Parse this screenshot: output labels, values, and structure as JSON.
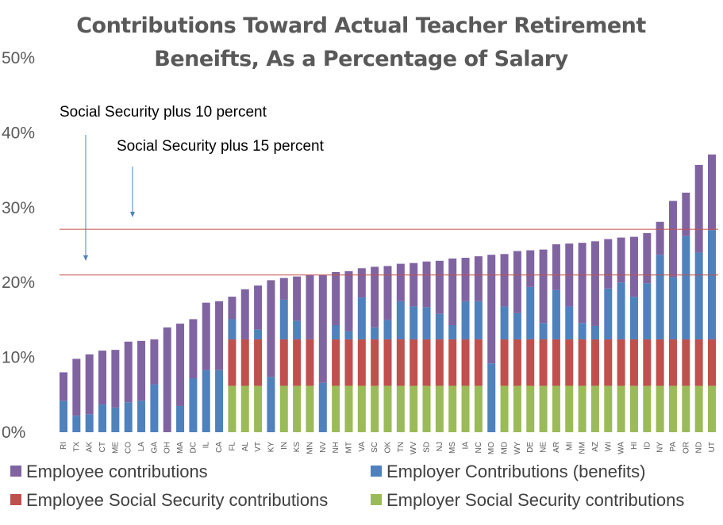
{
  "chart_data": {
    "type": "stacked-bar",
    "title": "Contributions Toward Actual Teacher Retirement Beneifts, As a Percentage of Salary",
    "categories": [
      "RI",
      "TX",
      "AK",
      "CT",
      "ME",
      "CO",
      "LA",
      "GA",
      "OH",
      "MA",
      "DC",
      "IL",
      "CA",
      "FL",
      "AL",
      "VT",
      "KY",
      "IN",
      "KS",
      "MN",
      "NV",
      "NH",
      "MT",
      "VA",
      "SC",
      "OK",
      "TN",
      "WV",
      "SD",
      "NJ",
      "MS",
      "IA",
      "NC",
      "MO",
      "MD",
      "WY",
      "DE",
      "NE",
      "AR",
      "MI",
      "NM",
      "AZ",
      "WI",
      "WA",
      "HI",
      "ID",
      "NY",
      "PA",
      "OR",
      "ND",
      "UT"
    ],
    "series": [
      {
        "name": "Employee contributions",
        "color": "#8064a2",
        "values": [
          3.8,
          7.6,
          8.0,
          7.2,
          7.7,
          8.1,
          8.0,
          6.0,
          14.0,
          11.0,
          7.9,
          9.0,
          9.2,
          3.0,
          6.7,
          5.9,
          12.9,
          2.9,
          5.9,
          8.6,
          14.4,
          7.1,
          8.0,
          3.9,
          8.1,
          7.2,
          5.0,
          5.8,
          6.1,
          7.1,
          8.9,
          5.8,
          6.0,
          14.5,
          7.0,
          8.3,
          4.9,
          9.8,
          6.1,
          8.4,
          10.7,
          11.3,
          6.6,
          6.0,
          8.0,
          6.7,
          4.4,
          10.2,
          5.8,
          11.7,
          10.1
        ]
      },
      {
        "name": "Employer Contributions (benefits)",
        "color": "#4f81bd",
        "values": [
          4.2,
          2.2,
          2.4,
          3.7,
          3.3,
          4.0,
          4.2,
          6.4,
          0,
          3.5,
          7.2,
          8.3,
          8.3,
          2.7,
          0,
          1.3,
          7.4,
          5.3,
          2.5,
          0,
          6.6,
          1.9,
          1.1,
          5.6,
          1.6,
          2.6,
          5.1,
          4.4,
          4.3,
          3.4,
          1.9,
          5.1,
          5.1,
          9.2,
          4.4,
          3.5,
          7.0,
          2.2,
          6.6,
          4.4,
          2.2,
          1.8,
          6.8,
          7.6,
          5.7,
          7.5,
          11.3,
          8.3,
          13.8,
          11.6,
          14.6
        ]
      },
      {
        "name": "Employee Social Security contributions",
        "color": "#c0504d",
        "values": [
          0,
          0,
          0,
          0,
          0,
          0,
          0,
          0,
          0,
          0,
          0,
          0,
          0,
          6.2,
          6.2,
          6.2,
          0,
          6.2,
          6.2,
          6.2,
          0,
          6.2,
          6.2,
          6.2,
          6.2,
          6.2,
          6.2,
          6.2,
          6.2,
          6.2,
          6.2,
          6.2,
          6.2,
          0,
          6.2,
          6.2,
          6.2,
          6.2,
          6.2,
          6.2,
          6.2,
          6.2,
          6.2,
          6.2,
          6.2,
          6.2,
          6.2,
          6.2,
          6.2,
          6.2,
          6.2
        ]
      },
      {
        "name": "Employer Social Security contributions",
        "color": "#9bbb59",
        "values": [
          0,
          0,
          0,
          0,
          0,
          0,
          0,
          0,
          0,
          0,
          0,
          0,
          0,
          6.2,
          6.2,
          6.2,
          0,
          6.2,
          6.2,
          6.2,
          0,
          6.2,
          6.2,
          6.2,
          6.2,
          6.2,
          6.2,
          6.2,
          6.2,
          6.2,
          6.2,
          6.2,
          6.2,
          0,
          6.2,
          6.2,
          6.2,
          6.2,
          6.2,
          6.2,
          6.2,
          6.2,
          6.2,
          6.2,
          6.2,
          6.2,
          6.2,
          6.2,
          6.2,
          6.2,
          6.2
        ]
      }
    ],
    "reference_lines": [
      {
        "label": "Social Security plus 10 percent",
        "value": 21.0,
        "color": "#c0504d"
      },
      {
        "label": "Social Security plus 15 percent",
        "value": 27.1,
        "color": "#c0504d"
      }
    ],
    "ylim": [
      0,
      50
    ],
    "yticks": [
      {
        "value": 0,
        "label": "0%"
      },
      {
        "value": 10,
        "label": "10%"
      },
      {
        "value": 20,
        "label": "20%"
      },
      {
        "value": 30,
        "label": "30%"
      },
      {
        "value": 40,
        "label": "40%"
      },
      {
        "value": 50,
        "label": "50%"
      }
    ],
    "grid": false
  }
}
